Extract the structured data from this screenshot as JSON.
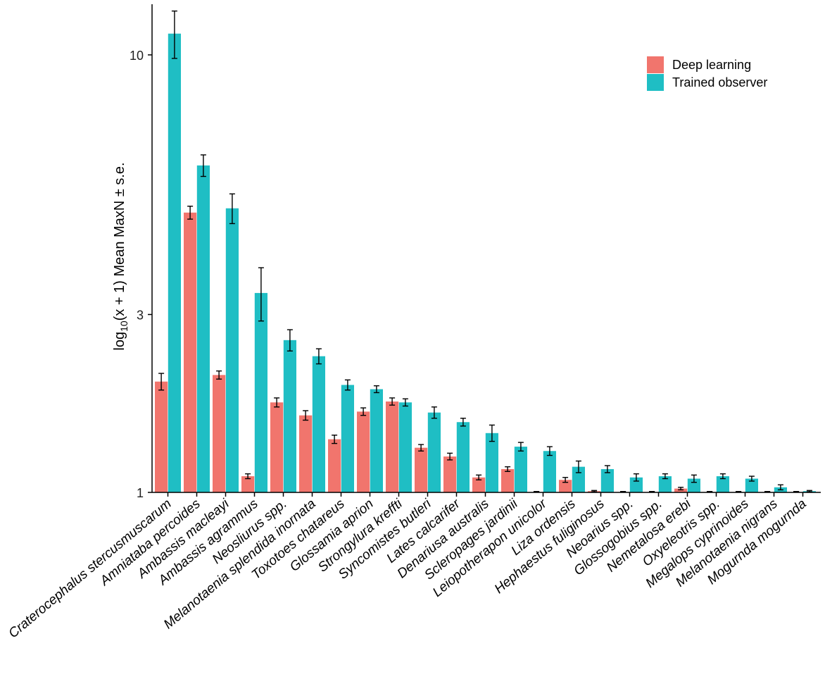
{
  "chart_data": {
    "type": "bar",
    "title": "",
    "xlabel": "",
    "ylabel_parts": [
      "log",
      "10",
      "(x + 1) Mean MaxN ± s.e."
    ],
    "y_scale": "log10(x+1)",
    "ylim": [
      1,
      12.4
    ],
    "yticks": [
      1,
      3,
      10
    ],
    "ytick_labels": [
      "1",
      "3",
      "10"
    ],
    "legend_position": "top-right",
    "colors": {
      "Deep learning": "#F1756D",
      "Trained observer": "#1FBEC4"
    },
    "categories": [
      "Craterocephalus stercusmuscarum",
      "Amniataba percoides",
      "Ambassis macleayi",
      "Ambassis agrammus",
      "Neosliurus spp.",
      "Melanotaenia splendida inornata",
      "Toxotoes chatareus",
      "Glossamia aprion",
      "Strongylura kreffti",
      "Syncomistes butleri",
      "Lates calcarifer",
      "Denariusa australis",
      "Scleropages jardinii",
      "Leiopotherapon unicolor",
      "Liza ordensis",
      "Hephaestus fuliginosus",
      "Neoarius spp.",
      "Glossogobius spp.",
      "Nemetalosa erebi",
      "Oxyeleotris spp.",
      "Megalops cyprinoides",
      "Melanotaenia nigrans",
      "Mogurnda mogurnda"
    ],
    "series": [
      {
        "name": "Deep learning",
        "values": [
          2.08,
          4.95,
          2.16,
          1.13,
          1.84,
          1.7,
          1.46,
          1.74,
          1.85,
          1.38,
          1.3,
          1.12,
          1.19,
          1.0,
          1.1,
          1.01,
          1.0,
          1.0,
          1.03,
          1.0,
          1.0,
          1.0,
          1.0
        ],
        "errors": [
          0.1,
          0.15,
          0.05,
          0.02,
          0.05,
          0.05,
          0.04,
          0.04,
          0.04,
          0.03,
          0.03,
          0.02,
          0.02,
          0.0,
          0.02,
          0.005,
          0.0,
          0.0,
          0.01,
          0.0,
          0.0,
          0.0,
          0.0
        ]
      },
      {
        "name": "Trained observer",
        "values": [
          10.95,
          6.15,
          5.05,
          3.35,
          2.62,
          2.4,
          2.04,
          1.99,
          1.84,
          1.73,
          1.63,
          1.52,
          1.39,
          1.35,
          1.21,
          1.19,
          1.12,
          1.13,
          1.11,
          1.13,
          1.11,
          1.04,
          1.01
        ],
        "errors": [
          1.1,
          0.3,
          0.35,
          0.45,
          0.15,
          0.1,
          0.06,
          0.04,
          0.04,
          0.06,
          0.04,
          0.08,
          0.04,
          0.04,
          0.05,
          0.03,
          0.03,
          0.02,
          0.03,
          0.02,
          0.02,
          0.02,
          0.005
        ]
      }
    ]
  }
}
